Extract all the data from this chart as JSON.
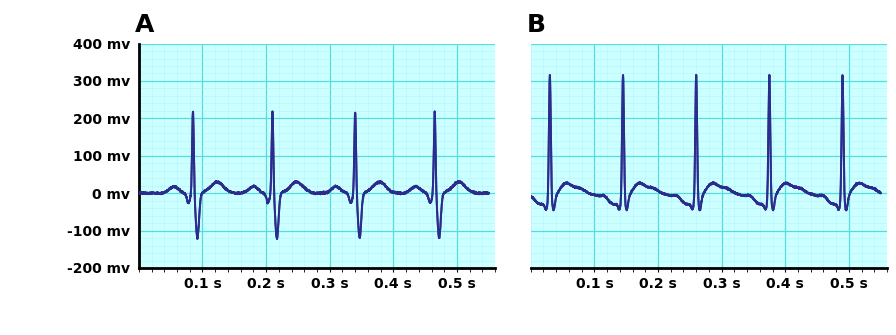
{
  "ecg_color": "#2B2D8E",
  "bg_color": "#CCFFFF",
  "grid_major_color": "#55DDDD",
  "grid_minor_color": "#AAEEFF",
  "fig_bg": "#FFFFFF",
  "ylim": [
    -200,
    400
  ],
  "xlim": [
    0,
    0.55
  ],
  "yticks": [
    -200,
    -100,
    0,
    100,
    200,
    300,
    400
  ],
  "ytick_labels": [
    "-200 mv",
    "-100 mv",
    "0 mv",
    "100 mv",
    "200 mv",
    "300 mv",
    "400 mv"
  ],
  "xticks": [
    0.1,
    0.2,
    0.3,
    0.4,
    0.5
  ],
  "xtick_labels": [
    "0.1 s",
    "0.2 s",
    "0.3 s",
    "0.4 s",
    "0.5 s"
  ],
  "label_A": "A",
  "label_B": "B",
  "linewidth": 1.4,
  "label_fontsize": 18,
  "tick_fontsize": 10
}
